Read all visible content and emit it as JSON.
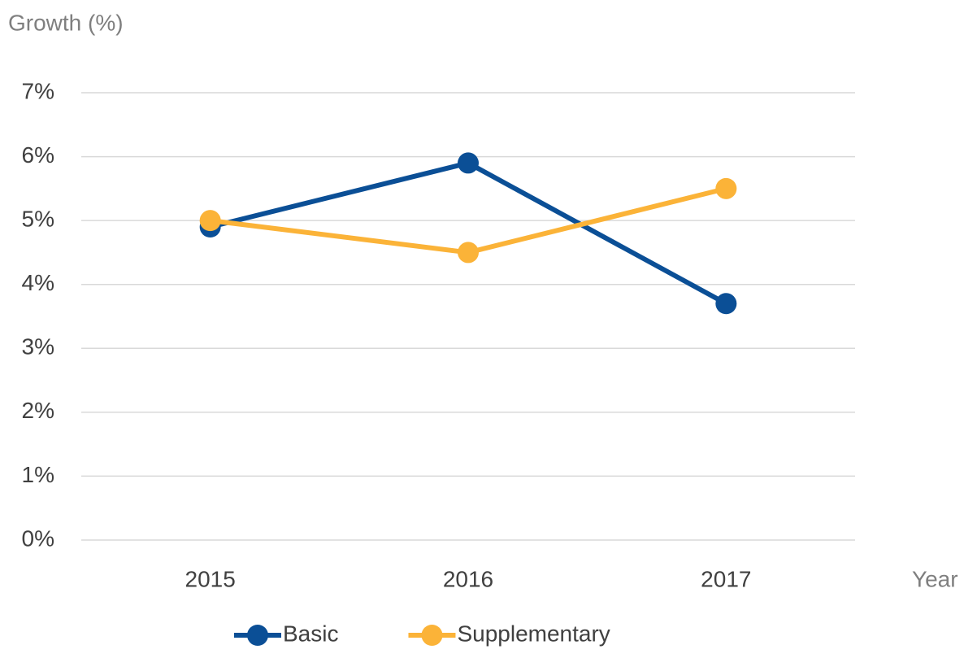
{
  "chart_data": {
    "type": "line",
    "y_label": "Growth (%)",
    "x_label": "Year",
    "categories": [
      "2015",
      "2016",
      "2017"
    ],
    "series": [
      {
        "name": "Basic",
        "color": "#0b4f96",
        "values": [
          4.9,
          5.9,
          3.7
        ]
      },
      {
        "name": "Supplementary",
        "color": "#fbb338",
        "values": [
          5.0,
          4.5,
          5.5
        ]
      }
    ],
    "ylim": [
      0,
      7
    ],
    "yticks": [
      {
        "value": 0,
        "label": "0%"
      },
      {
        "value": 1,
        "label": "1%"
      },
      {
        "value": 2,
        "label": "2%"
      },
      {
        "value": 3,
        "label": "3%"
      },
      {
        "value": 4,
        "label": "4%"
      },
      {
        "value": 5,
        "label": "5%"
      },
      {
        "value": 6,
        "label": "6%"
      },
      {
        "value": 7,
        "label": "7%"
      }
    ],
    "grid": true,
    "legend": "bottom"
  }
}
